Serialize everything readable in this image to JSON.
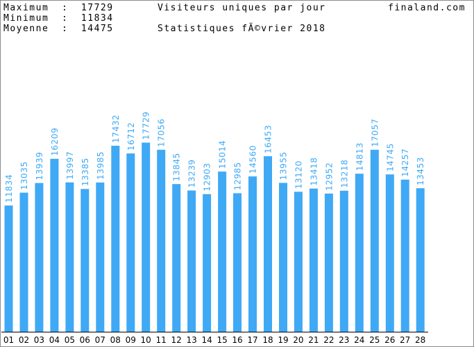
{
  "header": {
    "max_label": "Maximum  :  17729",
    "min_label": "Minimum  :  11834",
    "avg_label": "Moyenne  :  14475",
    "title": "Visiteurs uniques par jour",
    "subtitle": "Statistiques fÃ©vrier 2018",
    "site": "finaland.com"
  },
  "colors": {
    "bar": "#3fa9f5",
    "label": "#3fa9f5",
    "axis": "#000000"
  },
  "chart_data": {
    "type": "bar",
    "title": "Visiteurs uniques par jour",
    "subtitle": "Statistiques fÃ©vrier 2018",
    "categories": [
      "01",
      "02",
      "03",
      "04",
      "05",
      "06",
      "07",
      "08",
      "09",
      "10",
      "11",
      "12",
      "13",
      "14",
      "15",
      "16",
      "17",
      "18",
      "19",
      "20",
      "21",
      "22",
      "23",
      "24",
      "25",
      "26",
      "27",
      "28"
    ],
    "values": [
      11834,
      13035,
      13939,
      16209,
      13997,
      13385,
      13985,
      17432,
      16712,
      17729,
      17056,
      13845,
      13239,
      12903,
      15014,
      12985,
      14560,
      16453,
      13955,
      13120,
      13418,
      12952,
      13218,
      14813,
      17057,
      14745,
      14257,
      13453
    ],
    "ylim": [
      0,
      35000
    ],
    "grid": false,
    "legend": "none"
  }
}
